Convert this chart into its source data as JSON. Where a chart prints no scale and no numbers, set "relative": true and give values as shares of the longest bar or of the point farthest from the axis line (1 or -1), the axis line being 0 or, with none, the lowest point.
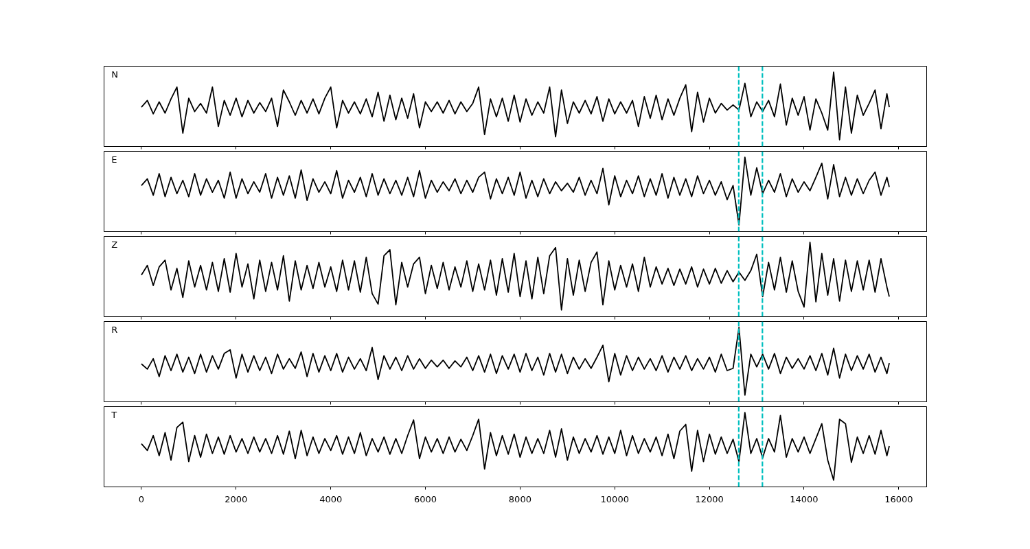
{
  "chart_data": [
    {
      "type": "line",
      "title": "N",
      "relative": true,
      "xlim": [
        -790,
        16590
      ],
      "xticks": [
        0,
        2000,
        4000,
        6000,
        8000,
        10000,
        12000,
        14000,
        16000
      ],
      "tick_labels": false,
      "x": [
        0,
        125,
        250,
        375,
        500,
        625,
        750,
        875,
        1000,
        1125,
        1250,
        1375,
        1500,
        1625,
        1750,
        1875,
        2000,
        2125,
        2250,
        2375,
        2500,
        2625,
        2750,
        2875,
        3000,
        3125,
        3250,
        3375,
        3500,
        3625,
        3750,
        3875,
        4000,
        4125,
        4250,
        4375,
        4500,
        4625,
        4750,
        4875,
        5000,
        5125,
        5250,
        5375,
        5500,
        5625,
        5750,
        5875,
        6000,
        6125,
        6250,
        6375,
        6500,
        6625,
        6750,
        6875,
        7000,
        7125,
        7250,
        7375,
        7500,
        7625,
        7750,
        7875,
        8000,
        8125,
        8250,
        8375,
        8500,
        8625,
        8750,
        8875,
        9000,
        9125,
        9250,
        9375,
        9500,
        9625,
        9750,
        9875,
        10000,
        10125,
        10250,
        10375,
        10500,
        10625,
        10750,
        10875,
        11000,
        11125,
        11250,
        11375,
        11500,
        11625,
        11750,
        11875,
        12000,
        12125,
        12250,
        12375,
        12500,
        12625,
        12750,
        12875,
        13000,
        13125,
        13250,
        13375,
        13500,
        13625,
        13750,
        13875,
        14000,
        14125,
        14250,
        14375,
        14500,
        14625,
        14750,
        14875,
        15000,
        15125,
        15250,
        15375,
        15500,
        15625,
        15750,
        15800
      ],
      "series": [
        {
          "color": "#000000",
          "values": [
            0.53,
            0.62,
            0.44,
            0.6,
            0.45,
            0.64,
            0.8,
            0.18,
            0.65,
            0.47,
            0.58,
            0.45,
            0.8,
            0.27,
            0.62,
            0.42,
            0.65,
            0.4,
            0.62,
            0.45,
            0.59,
            0.47,
            0.65,
            0.27,
            0.76,
            0.6,
            0.42,
            0.62,
            0.45,
            0.64,
            0.44,
            0.65,
            0.8,
            0.25,
            0.62,
            0.45,
            0.6,
            0.44,
            0.64,
            0.4,
            0.73,
            0.34,
            0.69,
            0.36,
            0.65,
            0.38,
            0.71,
            0.25,
            0.6,
            0.47,
            0.6,
            0.45,
            0.62,
            0.44,
            0.6,
            0.47,
            0.58,
            0.8,
            0.16,
            0.64,
            0.4,
            0.65,
            0.34,
            0.69,
            0.33,
            0.64,
            0.42,
            0.6,
            0.45,
            0.8,
            0.13,
            0.76,
            0.31,
            0.6,
            0.45,
            0.62,
            0.44,
            0.67,
            0.34,
            0.64,
            0.44,
            0.6,
            0.45,
            0.62,
            0.27,
            0.67,
            0.38,
            0.69,
            0.36,
            0.64,
            0.42,
            0.65,
            0.83,
            0.2,
            0.73,
            0.33,
            0.65,
            0.45,
            0.58,
            0.49,
            0.56,
            0.49,
            0.85,
            0.4,
            0.6,
            0.47,
            0.62,
            0.4,
            0.84,
            0.29,
            0.65,
            0.42,
            0.67,
            0.22,
            0.64,
            0.45,
            0.22,
            1.0,
            0.09,
            0.8,
            0.18,
            0.69,
            0.42,
            0.58,
            0.76,
            0.24,
            0.71,
            0.53
          ]
        }
      ],
      "ref_lines": [
        {
          "axis": "x",
          "value": 12620,
          "color": "#00bfbf",
          "line_style": "dashed"
        },
        {
          "axis": "x",
          "value": 13120,
          "color": "#00bfbf",
          "line_style": "dashed"
        }
      ]
    },
    {
      "type": "line",
      "title": "E",
      "relative": true,
      "xlim": [
        -790,
        16590
      ],
      "xticks": [
        0,
        2000,
        4000,
        6000,
        8000,
        10000,
        12000,
        14000,
        16000
      ],
      "tick_labels": false,
      "x": [
        0,
        125,
        250,
        375,
        500,
        625,
        750,
        875,
        1000,
        1125,
        1250,
        1375,
        1500,
        1625,
        1750,
        1875,
        2000,
        2125,
        2250,
        2375,
        2500,
        2625,
        2750,
        2875,
        3000,
        3125,
        3250,
        3375,
        3500,
        3625,
        3750,
        3875,
        4000,
        4125,
        4250,
        4375,
        4500,
        4625,
        4750,
        4875,
        5000,
        5125,
        5250,
        5375,
        5500,
        5625,
        5750,
        5875,
        6000,
        6125,
        6250,
        6375,
        6500,
        6625,
        6750,
        6875,
        7000,
        7125,
        7250,
        7375,
        7500,
        7625,
        7750,
        7875,
        8000,
        8125,
        8250,
        8375,
        8500,
        8625,
        8750,
        8875,
        9000,
        9125,
        9250,
        9375,
        9500,
        9625,
        9750,
        9875,
        10000,
        10125,
        10250,
        10375,
        10500,
        10625,
        10750,
        10875,
        11000,
        11125,
        11250,
        11375,
        11500,
        11625,
        11750,
        11875,
        12000,
        12125,
        12250,
        12375,
        12500,
        12625,
        12750,
        12875,
        13000,
        13125,
        13250,
        13375,
        13500,
        13625,
        13750,
        13875,
        14000,
        14125,
        14250,
        14375,
        14500,
        14625,
        14750,
        14875,
        15000,
        15125,
        15250,
        15375,
        15500,
        15625,
        15750,
        15800
      ],
      "series": [
        {
          "color": "#000000",
          "values": [
            0.62,
            0.71,
            0.49,
            0.78,
            0.47,
            0.73,
            0.51,
            0.69,
            0.47,
            0.78,
            0.49,
            0.71,
            0.53,
            0.69,
            0.45,
            0.8,
            0.45,
            0.71,
            0.51,
            0.67,
            0.53,
            0.78,
            0.45,
            0.73,
            0.49,
            0.75,
            0.45,
            0.83,
            0.42,
            0.71,
            0.53,
            0.67,
            0.51,
            0.82,
            0.45,
            0.69,
            0.53,
            0.73,
            0.47,
            0.78,
            0.49,
            0.71,
            0.51,
            0.69,
            0.49,
            0.73,
            0.47,
            0.82,
            0.45,
            0.69,
            0.53,
            0.67,
            0.55,
            0.71,
            0.51,
            0.69,
            0.53,
            0.73,
            0.8,
            0.44,
            0.71,
            0.51,
            0.73,
            0.49,
            0.8,
            0.45,
            0.69,
            0.47,
            0.71,
            0.51,
            0.67,
            0.55,
            0.65,
            0.53,
            0.73,
            0.49,
            0.69,
            0.51,
            0.85,
            0.36,
            0.75,
            0.47,
            0.69,
            0.51,
            0.75,
            0.47,
            0.71,
            0.49,
            0.78,
            0.45,
            0.73,
            0.49,
            0.71,
            0.47,
            0.75,
            0.51,
            0.69,
            0.49,
            0.67,
            0.43,
            0.62,
            0.09,
            1.0,
            0.49,
            0.86,
            0.51,
            0.69,
            0.53,
            0.78,
            0.47,
            0.71,
            0.53,
            0.67,
            0.55,
            0.73,
            0.92,
            0.44,
            0.9,
            0.47,
            0.73,
            0.49,
            0.71,
            0.51,
            0.69,
            0.8,
            0.49,
            0.73,
            0.6
          ]
        }
      ],
      "ref_lines": [
        {
          "axis": "x",
          "value": 12620,
          "color": "#00bfbf",
          "line_style": "dashed"
        },
        {
          "axis": "x",
          "value": 13120,
          "color": "#00bfbf",
          "line_style": "dashed"
        }
      ]
    },
    {
      "type": "line",
      "title": "Z",
      "relative": true,
      "xlim": [
        -790,
        16590
      ],
      "xticks": [
        0,
        2000,
        4000,
        6000,
        8000,
        10000,
        12000,
        14000,
        16000
      ],
      "tick_labels": false,
      "x": [
        0,
        125,
        250,
        375,
        500,
        625,
        750,
        875,
        1000,
        1125,
        1250,
        1375,
        1500,
        1625,
        1750,
        1875,
        2000,
        2125,
        2250,
        2375,
        2500,
        2625,
        2750,
        2875,
        3000,
        3125,
        3250,
        3375,
        3500,
        3625,
        3750,
        3875,
        4000,
        4125,
        4250,
        4375,
        4500,
        4625,
        4750,
        4875,
        5000,
        5125,
        5250,
        5375,
        5500,
        5625,
        5750,
        5875,
        6000,
        6125,
        6250,
        6375,
        6500,
        6625,
        6750,
        6875,
        7000,
        7125,
        7250,
        7375,
        7500,
        7625,
        7750,
        7875,
        8000,
        8125,
        8250,
        8375,
        8500,
        8625,
        8750,
        8875,
        9000,
        9125,
        9250,
        9375,
        9500,
        9625,
        9750,
        9875,
        10000,
        10125,
        10250,
        10375,
        10500,
        10625,
        10750,
        10875,
        11000,
        11125,
        11250,
        11375,
        11500,
        11625,
        11750,
        11875,
        12000,
        12125,
        12250,
        12375,
        12500,
        12625,
        12750,
        12875,
        13000,
        13125,
        13250,
        13375,
        13500,
        13625,
        13750,
        13875,
        14000,
        14125,
        14250,
        14375,
        14500,
        14625,
        14750,
        14875,
        15000,
        15125,
        15250,
        15375,
        15500,
        15625,
        15750,
        15800
      ],
      "series": [
        {
          "color": "#000000",
          "values": [
            0.56,
            0.69,
            0.42,
            0.67,
            0.76,
            0.36,
            0.65,
            0.26,
            0.75,
            0.4,
            0.69,
            0.36,
            0.73,
            0.34,
            0.78,
            0.33,
            0.85,
            0.4,
            0.71,
            0.24,
            0.76,
            0.34,
            0.73,
            0.36,
            0.82,
            0.21,
            0.75,
            0.36,
            0.69,
            0.38,
            0.73,
            0.4,
            0.67,
            0.34,
            0.76,
            0.36,
            0.75,
            0.33,
            0.8,
            0.31,
            0.17,
            0.82,
            0.9,
            0.16,
            0.73,
            0.4,
            0.71,
            0.8,
            0.31,
            0.69,
            0.38,
            0.73,
            0.36,
            0.67,
            0.4,
            0.75,
            0.34,
            0.71,
            0.36,
            0.76,
            0.29,
            0.78,
            0.33,
            0.85,
            0.27,
            0.75,
            0.24,
            0.8,
            0.31,
            0.82,
            0.93,
            0.09,
            0.78,
            0.29,
            0.76,
            0.34,
            0.73,
            0.87,
            0.16,
            0.75,
            0.36,
            0.69,
            0.4,
            0.71,
            0.34,
            0.8,
            0.4,
            0.67,
            0.44,
            0.65,
            0.42,
            0.64,
            0.44,
            0.67,
            0.4,
            0.64,
            0.44,
            0.65,
            0.45,
            0.62,
            0.47,
            0.6,
            0.49,
            0.62,
            0.84,
            0.27,
            0.73,
            0.36,
            0.8,
            0.33,
            0.75,
            0.34,
            0.13,
            1.0,
            0.2,
            0.85,
            0.29,
            0.78,
            0.21,
            0.76,
            0.34,
            0.75,
            0.36,
            0.76,
            0.33,
            0.78,
            0.4,
            0.27
          ]
        }
      ],
      "ref_lines": [
        {
          "axis": "x",
          "value": 12620,
          "color": "#00bfbf",
          "line_style": "dashed"
        },
        {
          "axis": "x",
          "value": 13120,
          "color": "#00bfbf",
          "line_style": "dashed"
        }
      ]
    },
    {
      "type": "line",
      "title": "R",
      "relative": true,
      "xlim": [
        -790,
        16590
      ],
      "xticks": [
        0,
        2000,
        4000,
        6000,
        8000,
        10000,
        12000,
        14000,
        16000
      ],
      "tick_labels": false,
      "x": [
        0,
        125,
        250,
        375,
        500,
        625,
        750,
        875,
        1000,
        1125,
        1250,
        1375,
        1500,
        1625,
        1750,
        1875,
        2000,
        2125,
        2250,
        2375,
        2500,
        2625,
        2750,
        2875,
        3000,
        3125,
        3250,
        3375,
        3500,
        3625,
        3750,
        3875,
        4000,
        4125,
        4250,
        4375,
        4500,
        4625,
        4750,
        4875,
        5000,
        5125,
        5250,
        5375,
        5500,
        5625,
        5750,
        5875,
        6000,
        6125,
        6250,
        6375,
        6500,
        6625,
        6750,
        6875,
        7000,
        7125,
        7250,
        7375,
        7500,
        7625,
        7750,
        7875,
        8000,
        8125,
        8250,
        8375,
        8500,
        8625,
        8750,
        8875,
        9000,
        9125,
        9250,
        9375,
        9500,
        9625,
        9750,
        9875,
        10000,
        10125,
        10250,
        10375,
        10500,
        10625,
        10750,
        10875,
        11000,
        11125,
        11250,
        11375,
        11500,
        11625,
        11750,
        11875,
        12000,
        12125,
        12250,
        12375,
        12500,
        12625,
        12750,
        12875,
        13000,
        13125,
        13250,
        13375,
        13500,
        13625,
        13750,
        13875,
        14000,
        14125,
        14250,
        14375,
        14500,
        14625,
        14750,
        14875,
        15000,
        15125,
        15250,
        15375,
        15500,
        15625,
        15750,
        15800
      ],
      "series": [
        {
          "color": "#000000",
          "values": [
            0.51,
            0.44,
            0.58,
            0.34,
            0.62,
            0.42,
            0.64,
            0.4,
            0.6,
            0.38,
            0.64,
            0.4,
            0.62,
            0.44,
            0.65,
            0.7,
            0.32,
            0.64,
            0.4,
            0.62,
            0.42,
            0.6,
            0.38,
            0.64,
            0.44,
            0.58,
            0.45,
            0.67,
            0.34,
            0.65,
            0.4,
            0.62,
            0.42,
            0.65,
            0.4,
            0.6,
            0.44,
            0.58,
            0.42,
            0.73,
            0.3,
            0.62,
            0.44,
            0.6,
            0.42,
            0.62,
            0.44,
            0.58,
            0.45,
            0.56,
            0.47,
            0.56,
            0.45,
            0.55,
            0.47,
            0.6,
            0.42,
            0.62,
            0.4,
            0.64,
            0.38,
            0.62,
            0.44,
            0.64,
            0.4,
            0.65,
            0.42,
            0.6,
            0.36,
            0.65,
            0.4,
            0.64,
            0.38,
            0.6,
            0.44,
            0.58,
            0.45,
            0.6,
            0.76,
            0.27,
            0.65,
            0.36,
            0.62,
            0.42,
            0.6,
            0.44,
            0.58,
            0.42,
            0.62,
            0.4,
            0.6,
            0.44,
            0.62,
            0.42,
            0.58,
            0.44,
            0.6,
            0.4,
            0.64,
            0.42,
            0.45,
            1.0,
            0.09,
            0.64,
            0.47,
            0.64,
            0.44,
            0.65,
            0.38,
            0.6,
            0.45,
            0.58,
            0.44,
            0.62,
            0.42,
            0.65,
            0.36,
            0.72,
            0.32,
            0.64,
            0.42,
            0.62,
            0.44,
            0.64,
            0.4,
            0.6,
            0.38,
            0.52
          ]
        }
      ],
      "ref_lines": [
        {
          "axis": "x",
          "value": 12620,
          "color": "#00bfbf",
          "line_style": "dashed"
        },
        {
          "axis": "x",
          "value": 13120,
          "color": "#00bfbf",
          "line_style": "dashed"
        }
      ]
    },
    {
      "type": "line",
      "title": "T",
      "relative": true,
      "xlim": [
        -790,
        16590
      ],
      "xticks": [
        0,
        2000,
        4000,
        6000,
        8000,
        10000,
        12000,
        14000,
        16000
      ],
      "tick_labels": "x",
      "x": [
        0,
        125,
        250,
        375,
        500,
        625,
        750,
        875,
        1000,
        1125,
        1250,
        1375,
        1500,
        1625,
        1750,
        1875,
        2000,
        2125,
        2250,
        2375,
        2500,
        2625,
        2750,
        2875,
        3000,
        3125,
        3250,
        3375,
        3500,
        3625,
        3750,
        3875,
        4000,
        4125,
        4250,
        4375,
        4500,
        4625,
        4750,
        4875,
        5000,
        5125,
        5250,
        5375,
        5500,
        5625,
        5750,
        5875,
        6000,
        6125,
        6250,
        6375,
        6500,
        6625,
        6750,
        6875,
        7000,
        7125,
        7250,
        7375,
        7500,
        7625,
        7750,
        7875,
        8000,
        8125,
        8250,
        8375,
        8500,
        8625,
        8750,
        8875,
        9000,
        9125,
        9250,
        9375,
        9500,
        9625,
        9750,
        9875,
        10000,
        10125,
        10250,
        10375,
        10500,
        10625,
        10750,
        10875,
        11000,
        11125,
        11250,
        11375,
        11500,
        11625,
        11750,
        11875,
        12000,
        12125,
        12250,
        12375,
        12500,
        12625,
        12750,
        12875,
        13000,
        13125,
        13250,
        13375,
        13500,
        13625,
        13750,
        13875,
        14000,
        14125,
        14250,
        14375,
        14500,
        14625,
        14750,
        14875,
        15000,
        15125,
        15250,
        15375,
        15500,
        15625,
        15750,
        15800
      ],
      "series": [
        {
          "color": "#000000",
          "values": [
            0.58,
            0.49,
            0.69,
            0.42,
            0.73,
            0.36,
            0.8,
            0.87,
            0.34,
            0.69,
            0.4,
            0.71,
            0.45,
            0.67,
            0.44,
            0.69,
            0.47,
            0.65,
            0.45,
            0.67,
            0.47,
            0.65,
            0.45,
            0.69,
            0.44,
            0.75,
            0.38,
            0.76,
            0.42,
            0.67,
            0.45,
            0.65,
            0.49,
            0.69,
            0.44,
            0.67,
            0.45,
            0.73,
            0.42,
            0.65,
            0.47,
            0.67,
            0.44,
            0.65,
            0.45,
            0.69,
            0.9,
            0.38,
            0.67,
            0.47,
            0.65,
            0.45,
            0.67,
            0.47,
            0.64,
            0.49,
            0.69,
            0.91,
            0.24,
            0.73,
            0.42,
            0.69,
            0.44,
            0.71,
            0.4,
            0.67,
            0.45,
            0.65,
            0.45,
            0.76,
            0.4,
            0.78,
            0.36,
            0.67,
            0.45,
            0.65,
            0.47,
            0.69,
            0.44,
            0.67,
            0.45,
            0.76,
            0.42,
            0.69,
            0.45,
            0.65,
            0.47,
            0.67,
            0.42,
            0.71,
            0.38,
            0.75,
            0.84,
            0.21,
            0.76,
            0.34,
            0.71,
            0.44,
            0.67,
            0.45,
            0.64,
            0.34,
            1.0,
            0.45,
            0.65,
            0.39,
            0.65,
            0.47,
            0.96,
            0.4,
            0.65,
            0.47,
            0.67,
            0.45,
            0.65,
            0.85,
            0.36,
            0.09,
            0.91,
            0.85,
            0.33,
            0.67,
            0.45,
            0.69,
            0.44,
            0.76,
            0.42,
            0.55
          ]
        }
      ],
      "ref_lines": [
        {
          "axis": "x",
          "value": 12620,
          "color": "#00bfbf",
          "line_style": "dashed"
        },
        {
          "axis": "x",
          "value": 13120,
          "color": "#00bfbf",
          "line_style": "dashed"
        }
      ]
    }
  ]
}
